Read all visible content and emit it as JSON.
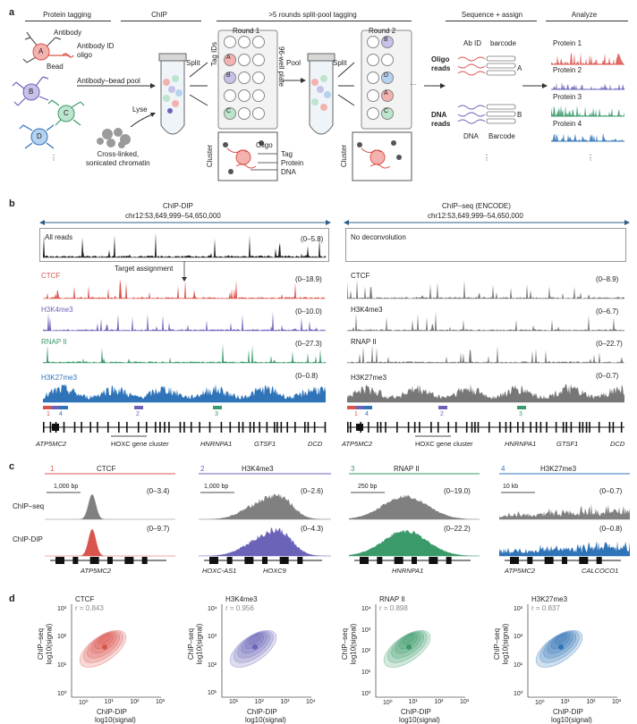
{
  "panel_a": {
    "letter": "a",
    "steps": [
      "Protein tagging",
      "ChIP",
      ">5 rounds split-pool tagging",
      "Sequence + assign",
      "Analyze"
    ],
    "antibody": "Antibody",
    "antibody_id_oligo": "Antibody ID\noligo",
    "bead": "Bead",
    "bead_pool": "Antibody–bead pool",
    "lyse": "Lyse",
    "chromatin": "Cross-linked,\nsonicated chromatin",
    "split1": "Split",
    "pool": "Pool",
    "split2": "Split",
    "round1": "Round 1",
    "round2": "Round 2",
    "tag_ids": "Tag IDs",
    "plate": "96-well plate",
    "cluster1": "Cluster",
    "cluster2": "Cluster",
    "oligo": "Oligo",
    "tag": "Tag",
    "protein": "Protein",
    "dna": "DNA",
    "ab_id": "Ab ID",
    "barcode": "barcode",
    "oligo_reads": "Oligo\nreads",
    "dna_reads": "DNA\nreads",
    "dna_label": "DNA",
    "barcode_label": "Barcode",
    "read_a": "A",
    "read_b": "B",
    "proteins": [
      "Protein 1",
      "Protein 2",
      "Protein 3",
      "Protein 4"
    ],
    "bead_letters": [
      "A",
      "B",
      "C",
      "D"
    ],
    "well_letters_r1": [
      "A",
      "B",
      "C"
    ],
    "well_letters_r2": [
      "B",
      "D",
      "A",
      "C"
    ],
    "dots": "⋮",
    "ellipsis": "···"
  },
  "panel_b": {
    "letter": "b",
    "left_title": "ChIP-DIP",
    "right_title": "ChIP–seq (ENCODE)",
    "coords": "chr12:53,649,999–54,650,000",
    "all_reads": "All reads",
    "all_reads_range": "(0–5.8)",
    "no_deconv": "No deconvolution",
    "target_assignment": "Target assignment",
    "left_tracks": [
      {
        "name": "CTCF",
        "range": "(0–18.9)",
        "color": "#d9544d"
      },
      {
        "name": "H3K4me3",
        "range": "(0–10.0)",
        "color": "#6a63b8"
      },
      {
        "name": "RNAP II",
        "range": "(0–27.3)",
        "color": "#3a9a6a"
      },
      {
        "name": "H3K27me3",
        "range": "(0–0.8)",
        "color": "#2f73b8"
      }
    ],
    "right_tracks": [
      {
        "name": "CTCF",
        "range": "(0–8.9)"
      },
      {
        "name": "H3K4me3",
        "range": "(0–6.7)"
      },
      {
        "name": "RNAP II",
        "range": "(0–22.7)"
      },
      {
        "name": "H3K27me3",
        "range": "(0–0.7)"
      }
    ],
    "region_numbers": [
      "1",
      "4",
      "2",
      "3"
    ],
    "genes": [
      "ATP5MC2",
      "HOXC gene cluster",
      "HNRNPA1",
      "GTSF1",
      "DCD"
    ]
  },
  "panel_c": {
    "letter": "c",
    "row_labels": [
      "ChIP–seq",
      "ChIP-DIP"
    ],
    "panels": [
      {
        "num": "1",
        "title": "CTCF",
        "color": "#d9544d",
        "scale": "1,000 bp",
        "seq_range": "(0–3.4)",
        "dip_range": "(0–9.7)",
        "genes": [
          "ATP5MC2"
        ]
      },
      {
        "num": "2",
        "title": "H3K4me3",
        "color": "#6a63b8",
        "scale": "1,000 bp",
        "seq_range": "(0–2.6)",
        "dip_range": "(0–4.3)",
        "genes": [
          "HOXC-AS1",
          "HOXC9"
        ]
      },
      {
        "num": "3",
        "title": "RNAP II",
        "color": "#3a9a6a",
        "scale": "250 bp",
        "seq_range": "(0–19.0)",
        "dip_range": "(0–22.2)",
        "genes": [
          "HNRNPA1"
        ]
      },
      {
        "num": "4",
        "title": "H3K27me3",
        "color": "#2f73b8",
        "scale": "10 kb",
        "seq_range": "(0–0.7)",
        "dip_range": "(0–0.8)",
        "genes": [
          "ATP5MC2",
          "CALCOCO1"
        ]
      }
    ]
  },
  "panel_d": {
    "letter": "d",
    "ylabel1": "ChIP–seq",
    "ylabel2": "log10(signal)",
    "xlabel1": "ChIP-DIP",
    "xlabel2": "log10(signal)",
    "plots": [
      {
        "title": "CTCF",
        "r": "r = 0.843",
        "color": "#d9544d",
        "xticks": [
          "10⁰",
          "10¹",
          "10²",
          "10³"
        ],
        "yticks": [
          "10⁰",
          "10¹",
          "10²",
          "10³"
        ]
      },
      {
        "title": "H3K4me3",
        "r": "r = 0.956",
        "color": "#6a63b8",
        "xticks": [
          "10¹",
          "10²",
          "10³",
          "10⁴"
        ],
        "yticks": [
          "10¹",
          "10²",
          "10³",
          "10⁴"
        ]
      },
      {
        "title": "RNAP II",
        "r": "r = 0.898",
        "color": "#3a9a6a",
        "xticks": [
          "10⁰",
          "10¹",
          "10²",
          "10³"
        ],
        "yticks": [
          "10⁰",
          "10¹",
          "10²",
          "10³",
          "10⁴"
        ]
      },
      {
        "title": "H3K27me3",
        "r": "r = 0.837",
        "color": "#2f73b8",
        "xticks": [
          "10⁰",
          "10¹",
          "10²",
          "10³"
        ],
        "yticks": [
          "10⁰",
          "10¹",
          "10²",
          "10³"
        ]
      }
    ]
  }
}
